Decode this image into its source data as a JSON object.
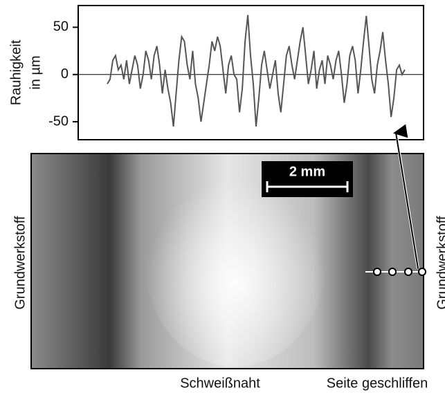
{
  "chart_data": {
    "type": "line",
    "ylabel": [
      "Rauhigkeit",
      "in µm"
    ],
    "ylim": [
      -69,
      73
    ],
    "yticks": [
      -50,
      0,
      50
    ],
    "zero_line": true,
    "color": "#555555",
    "values": [
      -10,
      -5,
      15,
      20,
      5,
      10,
      -5,
      15,
      -10,
      5,
      20,
      10,
      -15,
      0,
      25,
      15,
      -5,
      20,
      30,
      10,
      -20,
      5,
      -15,
      -30,
      -55,
      -20,
      15,
      40,
      35,
      10,
      -5,
      25,
      -10,
      -25,
      -50,
      -30,
      -10,
      10,
      35,
      25,
      40,
      30,
      5,
      -20,
      10,
      20,
      0,
      -5,
      -40,
      -15,
      35,
      63,
      20,
      -10,
      -55,
      -25,
      10,
      25,
      5,
      -15,
      0,
      15,
      -20,
      -40,
      -10,
      20,
      30,
      10,
      -5,
      15,
      35,
      50,
      20,
      -10,
      5,
      25,
      -15,
      5,
      15,
      -10,
      20,
      10,
      -5,
      15,
      25,
      0,
      -30,
      -10,
      20,
      30,
      15,
      -20,
      5,
      35,
      62,
      30,
      -5,
      -20,
      10,
      25,
      45,
      15,
      -10,
      -45,
      -25,
      5,
      10,
      0,
      5
    ]
  },
  "figure": {
    "scale_bar": "2 mm",
    "left_label": "Grundwerkstoff",
    "right_label": "Grundwerkstoff",
    "bottom_labels": [
      "Schweißnaht",
      "Seite geschliffen"
    ]
  }
}
